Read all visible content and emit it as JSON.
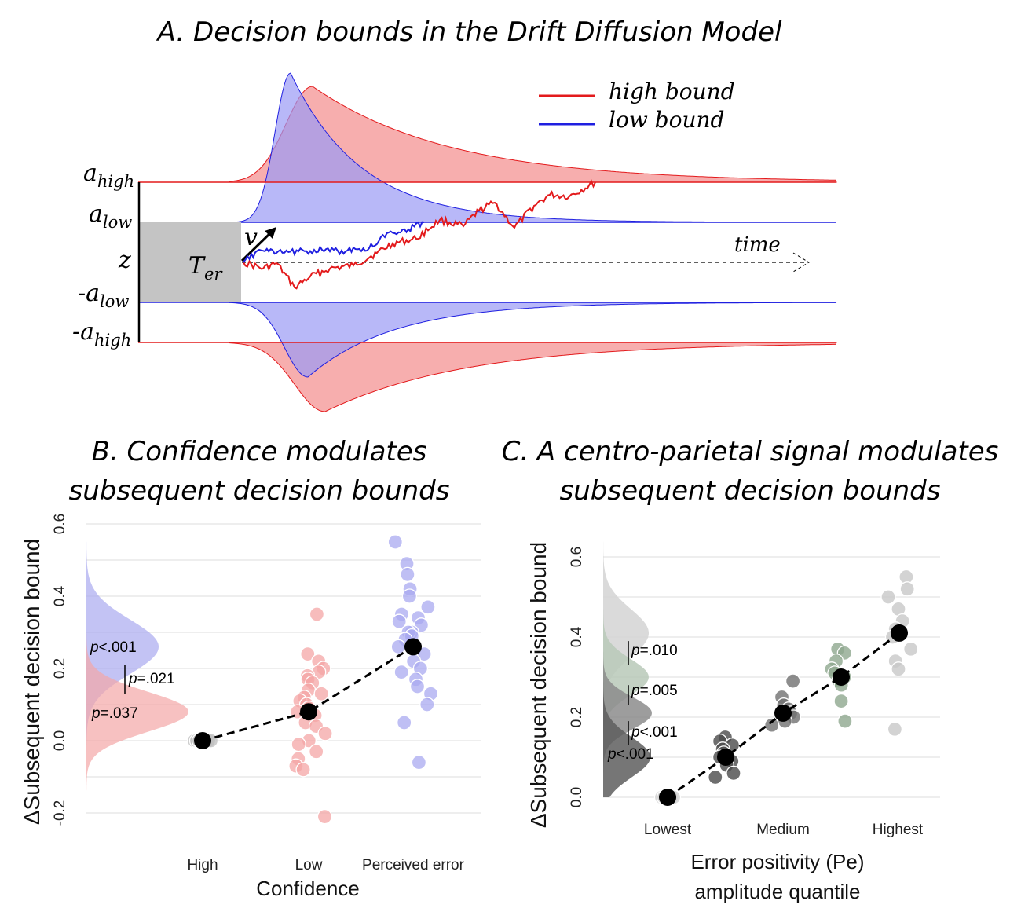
{
  "chart_data": [
    {
      "panel": "A",
      "type": "area",
      "title": "A. Decision bounds in the Drift Diffusion Model",
      "legend": {
        "placement": "top-right",
        "entries": [
          {
            "label": "high bound",
            "color": "#e31a1c"
          },
          {
            "label": "low bound",
            "color": "#1f1fe0"
          }
        ]
      },
      "bound_labels": {
        "a_high": {
          "base": "a",
          "sub": "high"
        },
        "a_low": {
          "base": "a",
          "sub": "low"
        },
        "z": "z",
        "neg_a_low": {
          "base": "-a",
          "sub": "low"
        },
        "neg_a_high": {
          "base": "-a",
          "sub": "high"
        }
      },
      "ter_label": {
        "base": "T",
        "sub": "er"
      },
      "drift_label": "v",
      "time_label": "time"
    },
    {
      "panel": "B",
      "type": "scatter",
      "title_lines": [
        "B. Confidence modulates",
        "subsequent decision bounds"
      ],
      "xlabel": "Confidence",
      "ylabel": "ΔSubsequent decision bound",
      "ylim": [
        -0.2,
        0.6
      ],
      "yticks": [
        "-0.2",
        "0.0",
        "0.2",
        "0.4",
        "0.6"
      ],
      "categories": [
        "High",
        "Low",
        "Perceived error"
      ],
      "means": [
        0.0,
        0.08,
        0.26
      ],
      "series": [
        {
          "category": "High",
          "color": "#bdbdbd",
          "values": [
            0.0,
            0.0,
            0.0,
            0.0,
            0.0,
            0.0,
            0.0,
            0.0
          ]
        },
        {
          "category": "Low",
          "color": "#f4a6a6",
          "values": [
            0.35,
            0.24,
            0.22,
            0.2,
            0.19,
            0.18,
            0.17,
            0.16,
            0.14,
            0.13,
            0.12,
            0.11,
            0.1,
            0.09,
            0.08,
            0.07,
            0.05,
            0.04,
            0.02,
            0.0,
            -0.01,
            -0.03,
            -0.05,
            -0.07,
            -0.08,
            -0.21
          ]
        },
        {
          "category": "Perceived error",
          "color": "#a9a9f0",
          "values": [
            0.55,
            0.49,
            0.46,
            0.42,
            0.4,
            0.37,
            0.35,
            0.34,
            0.33,
            0.32,
            0.3,
            0.3,
            0.29,
            0.28,
            0.26,
            0.24,
            0.22,
            0.2,
            0.19,
            0.17,
            0.15,
            0.13,
            0.1,
            0.05,
            -0.06
          ]
        }
      ],
      "distributions": [
        {
          "name": "Perceived error",
          "color": "#a9a9f0",
          "mean": 0.26
        },
        {
          "name": "Low",
          "color": "#f4a6a6",
          "mean": 0.08
        }
      ],
      "pvalues": [
        "p<.001",
        "p=.021",
        "p=.037"
      ]
    },
    {
      "panel": "C",
      "type": "scatter",
      "title_lines": [
        "C. A centro-parietal signal modulates",
        "subsequent decision bounds"
      ],
      "xlabel_lines": [
        "Error positivity (Pe)",
        "amplitude quantile"
      ],
      "ylabel": "ΔSubsequent decision bound",
      "ylim": [
        0.0,
        0.6
      ],
      "yticks": [
        "0.0",
        "0.2",
        "0.4",
        "0.6"
      ],
      "xticks": [
        "Lowest",
        "Medium",
        "Highest"
      ],
      "means": [
        0.0,
        0.1,
        0.21,
        0.3,
        0.41
      ],
      "series": [
        {
          "quantile": 1,
          "color": "#d0d0d0",
          "values": [
            0.0,
            0.0,
            0.0,
            0.0,
            0.0,
            0.0
          ]
        },
        {
          "quantile": 2,
          "color": "#4a4a4a",
          "values": [
            0.15,
            0.14,
            0.13,
            0.12,
            0.11,
            0.1,
            0.09,
            0.08,
            0.06,
            0.05
          ]
        },
        {
          "quantile": 3,
          "color": "#707070",
          "values": [
            0.29,
            0.25,
            0.23,
            0.22,
            0.21,
            0.2,
            0.19,
            0.18
          ]
        },
        {
          "quantile": 4,
          "color": "#8fa88f",
          "values": [
            0.37,
            0.36,
            0.34,
            0.32,
            0.31,
            0.3,
            0.29,
            0.28,
            0.24,
            0.19
          ]
        },
        {
          "quantile": 5,
          "color": "#c8c8c8",
          "values": [
            0.55,
            0.52,
            0.5,
            0.47,
            0.44,
            0.42,
            0.4,
            0.37,
            0.34,
            0.32,
            0.17
          ]
        }
      ],
      "distributions": [
        {
          "quantile": 5,
          "color": "#d4d4d4",
          "mean": 0.41
        },
        {
          "quantile": 4,
          "color": "#b8c9b8",
          "mean": 0.3
        },
        {
          "quantile": 3,
          "color": "#8c8c8c",
          "mean": 0.21
        },
        {
          "quantile": 2,
          "color": "#5e5e5e",
          "mean": 0.1
        }
      ],
      "pvalues": [
        "p=.010",
        "p=.005",
        "p<.001",
        "p<.001"
      ]
    }
  ]
}
